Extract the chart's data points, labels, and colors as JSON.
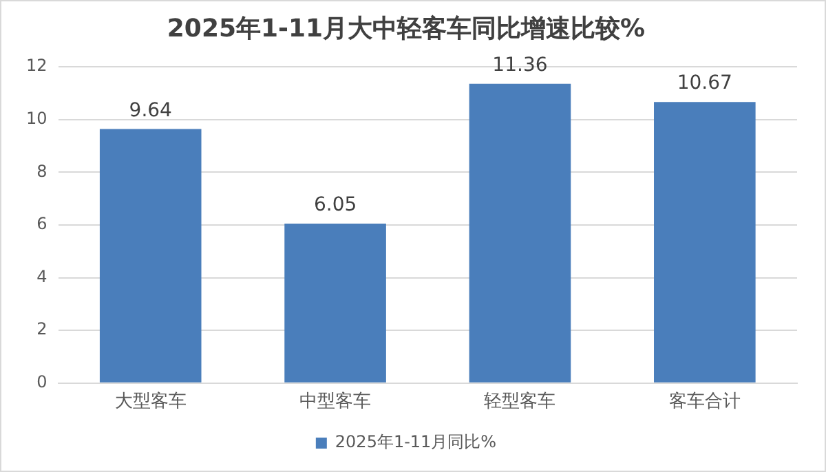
{
  "chart_data": {
    "type": "bar",
    "title": "2025年1-11月大中轻客车同比增速比较%",
    "categories": [
      "大型客车",
      "中型客车",
      "轻型客车",
      "客车合计"
    ],
    "series": [
      {
        "name": "2025年1-11月同比%",
        "color": "#4a7ebb",
        "values": [
          9.64,
          6.05,
          11.36,
          10.67
        ]
      }
    ],
    "ylim": [
      0,
      12
    ],
    "yticks": [
      0,
      2,
      4,
      6,
      8,
      10,
      12
    ],
    "grid": "y",
    "legend": "bottom",
    "data_labels": true
  }
}
